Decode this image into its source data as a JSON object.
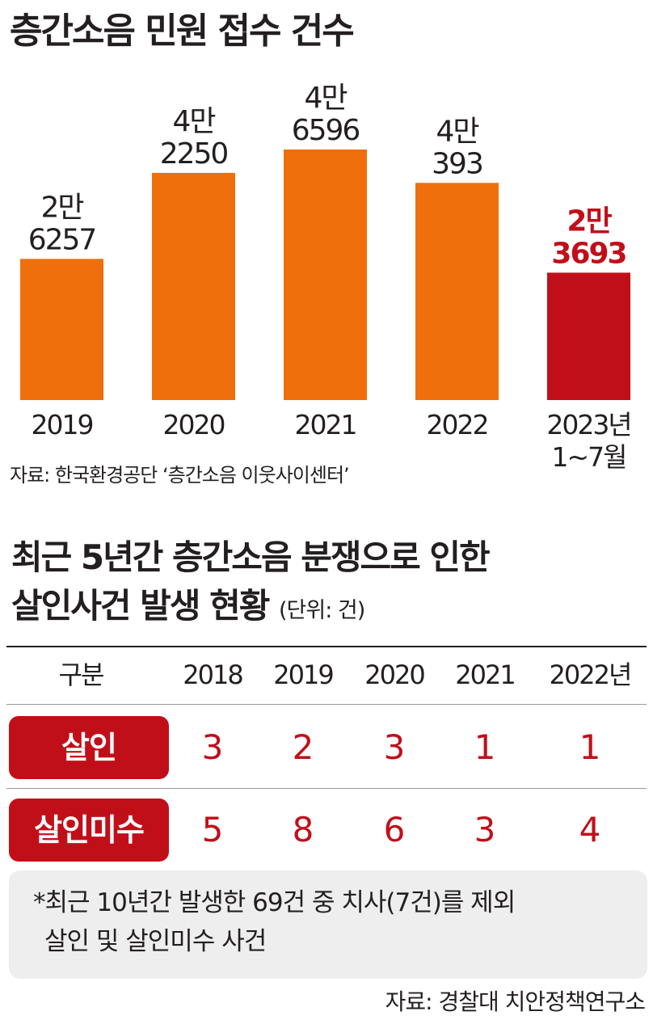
{
  "chart_data": {
    "type": "bar",
    "title": "층간소음 민원 접수 건수",
    "categories": [
      "2019",
      "2020",
      "2021",
      "2022",
      "2023년 1~7월"
    ],
    "category_lines": [
      [
        "2019"
      ],
      [
        "2020"
      ],
      [
        "2021"
      ],
      [
        "2022"
      ],
      [
        "2023년",
        "1~7월"
      ]
    ],
    "values": [
      26257,
      42250,
      46596,
      40393,
      23693
    ],
    "value_labels": [
      [
        "2만",
        "6257"
      ],
      [
        "4만",
        "2250"
      ],
      [
        "4만",
        "6596"
      ],
      [
        "4만",
        "393"
      ],
      [
        "2만",
        "3693"
      ]
    ],
    "colors": [
      "#ee6f0c",
      "#ee6f0c",
      "#ee6f0c",
      "#ee6f0c",
      "#c10f1a"
    ],
    "label_colors": [
      "#231f20",
      "#231f20",
      "#231f20",
      "#231f20",
      "#c10f1a"
    ],
    "xlabel": "",
    "ylabel": "",
    "grid": false,
    "legend": "none"
  },
  "source_1": "자료: 한국환경공단 ‘층간소음 이웃사이센터’",
  "table": {
    "title_line1": "최근 5년간 층간소음 분쟁으로 인한",
    "title_line2": "살인사건 발생 현황",
    "unit": "(단위: 건)",
    "headers": [
      "구분",
      "2018",
      "2019",
      "2020",
      "2021",
      "2022년"
    ],
    "rows": [
      {
        "label": "살인",
        "values": [
          "3",
          "2",
          "3",
          "1",
          "1"
        ]
      },
      {
        "label": "살인미수",
        "values": [
          "5",
          "8",
          "6",
          "3",
          "4"
        ]
      }
    ]
  },
  "note": {
    "line1": "*최근 10년간 발생한 69건 중 치사(7건)를 제외",
    "line2": "살인 및 살인미수 사건"
  },
  "source_2": "자료: 경찰대 치안정책연구소"
}
